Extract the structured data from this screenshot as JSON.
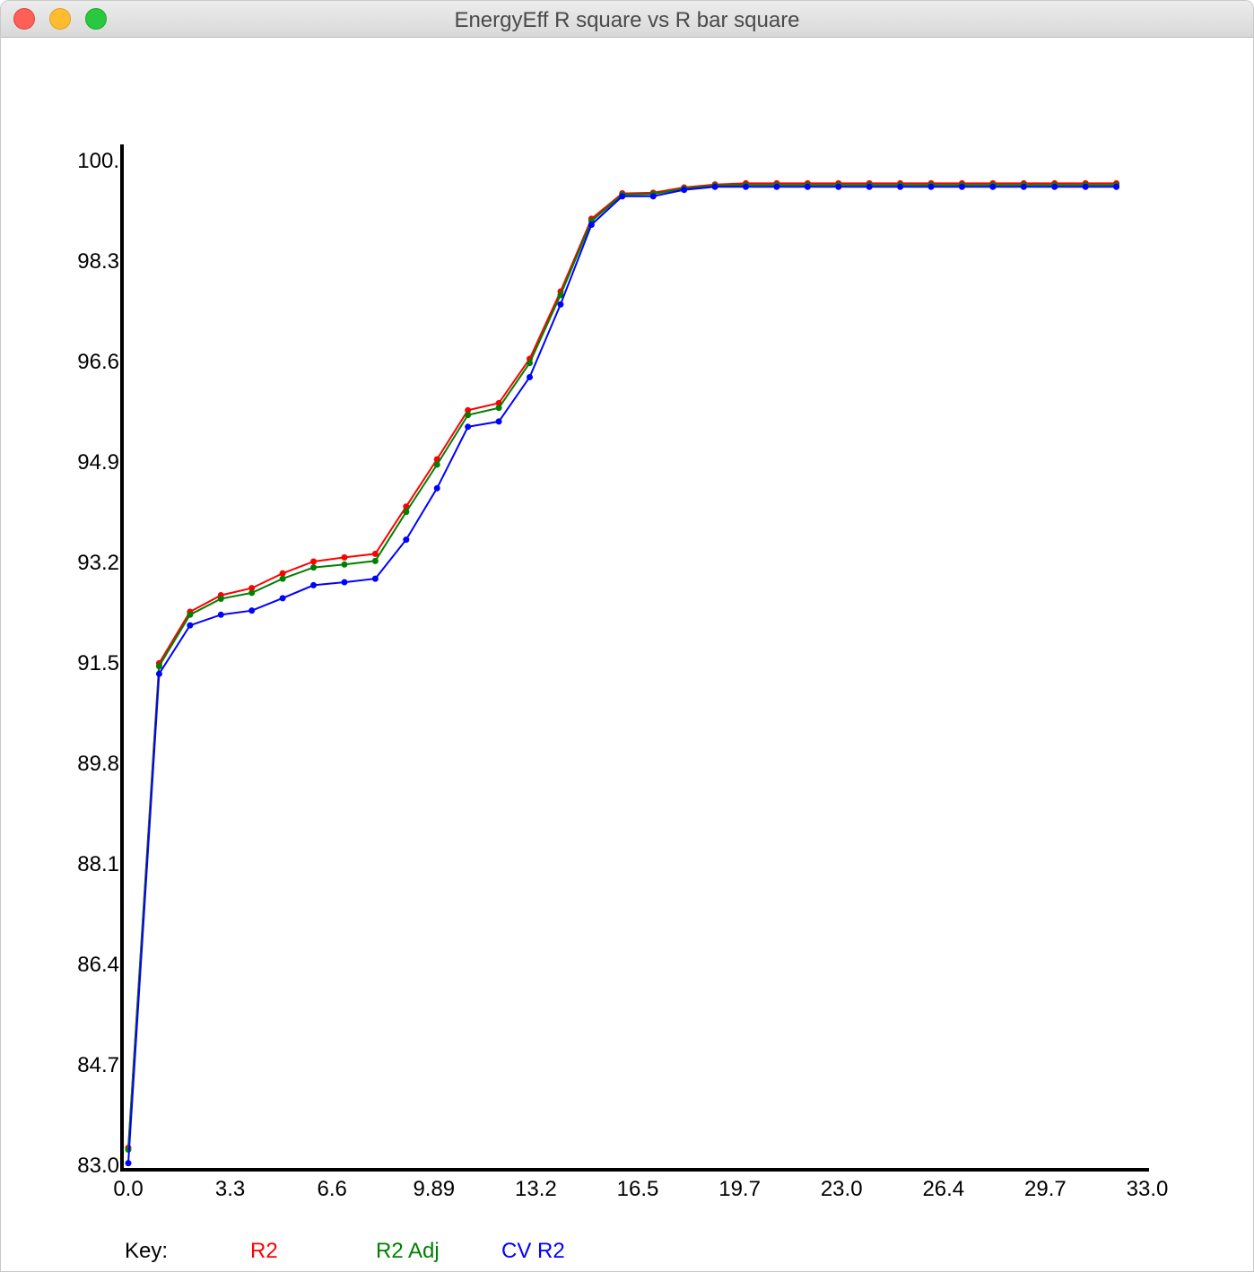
{
  "window": {
    "title": "EnergyEff R square vs R bar square"
  },
  "chart_data": {
    "type": "line",
    "title": "EnergyEff R square vs R bar square",
    "xlabel": "",
    "ylabel": "",
    "xlim": [
      0,
      33
    ],
    "ylim": [
      83.0,
      100.0
    ],
    "x_ticks": [
      "0.0",
      "3.3",
      "6.6",
      "9.89",
      "13.2",
      "16.5",
      "19.7",
      "23.0",
      "26.4",
      "29.7",
      "33.0"
    ],
    "y_ticks": [
      "83.0",
      "84.7",
      "86.4",
      "88.1",
      "89.8",
      "91.5",
      "93.2",
      "94.9",
      "96.6",
      "98.3",
      "100."
    ],
    "x": [
      0,
      1,
      2,
      3,
      4,
      5,
      6,
      7,
      8,
      9,
      10,
      11,
      12,
      13,
      14,
      15,
      16,
      17,
      18,
      19,
      20,
      21,
      22,
      23,
      24,
      25,
      26,
      27,
      28,
      29,
      30,
      31,
      32
    ],
    "series": [
      {
        "name": "R2",
        "color": "#ff0000",
        "values": [
          83.28,
          91.48,
          92.35,
          92.63,
          92.75,
          93.0,
          93.2,
          93.27,
          93.33,
          94.13,
          94.93,
          95.76,
          95.88,
          96.63,
          97.77,
          99.0,
          99.43,
          99.44,
          99.53,
          99.58,
          99.6,
          99.6,
          99.6,
          99.6,
          99.6,
          99.6,
          99.6,
          99.6,
          99.6,
          99.6,
          99.6,
          99.6,
          99.6
        ]
      },
      {
        "name": "R2 Adj",
        "color": "#008000",
        "values": [
          83.25,
          91.43,
          92.3,
          92.57,
          92.67,
          92.91,
          93.1,
          93.15,
          93.21,
          94.04,
          94.84,
          95.68,
          95.8,
          96.56,
          97.71,
          98.96,
          99.41,
          99.42,
          99.51,
          99.56,
          99.57,
          99.57,
          99.57,
          99.57,
          99.57,
          99.57,
          99.57,
          99.57,
          99.57,
          99.57,
          99.57,
          99.57,
          99.57
        ]
      },
      {
        "name": "CV R2",
        "color": "#0000ff",
        "values": [
          83.02,
          91.3,
          92.12,
          92.3,
          92.37,
          92.58,
          92.8,
          92.85,
          92.91,
          93.57,
          94.44,
          95.48,
          95.57,
          96.32,
          97.55,
          98.9,
          99.38,
          99.38,
          99.49,
          99.54,
          99.54,
          99.54,
          99.54,
          99.54,
          99.54,
          99.54,
          99.54,
          99.54,
          99.54,
          99.54,
          99.54,
          99.54,
          99.54
        ]
      }
    ],
    "legend": {
      "key_label": "Key:",
      "entries": [
        "R2",
        "R2 Adj",
        "CV R2"
      ],
      "placement": "bottom"
    }
  }
}
